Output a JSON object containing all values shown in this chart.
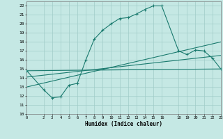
{
  "xlabel": "Humidex (Indice chaleur)",
  "xlim": [
    0,
    23
  ],
  "ylim": [
    10,
    22.5
  ],
  "xticks": [
    0,
    2,
    3,
    4,
    5,
    6,
    7,
    8,
    9,
    10,
    11,
    12,
    13,
    14,
    15,
    16,
    18,
    19,
    20,
    21,
    22,
    23
  ],
  "yticks": [
    10,
    11,
    12,
    13,
    14,
    15,
    16,
    17,
    18,
    19,
    20,
    21,
    22
  ],
  "bg_color": "#c5e8e4",
  "line_color": "#1a7a6e",
  "grid_color": "#a0ccc8",
  "line1_x": [
    0,
    2,
    3,
    4,
    5,
    6,
    7,
    8,
    9,
    10,
    11,
    12,
    13,
    14,
    15,
    16,
    18,
    19,
    20,
    21,
    22,
    23
  ],
  "line1_y": [
    14.8,
    12.7,
    11.8,
    11.9,
    13.2,
    13.4,
    16.0,
    18.3,
    19.3,
    20.0,
    20.6,
    20.7,
    21.1,
    21.6,
    22.0,
    22.0,
    17.0,
    16.6,
    17.1,
    17.0,
    16.2,
    15.0
  ],
  "line2_x": [
    0,
    23
  ],
  "line2_y": [
    14.8,
    15.0
  ],
  "line3_x": [
    0,
    23
  ],
  "line3_y": [
    14.1,
    16.5
  ],
  "line4_x": [
    0,
    23
  ],
  "line4_y": [
    13.0,
    18.0
  ]
}
